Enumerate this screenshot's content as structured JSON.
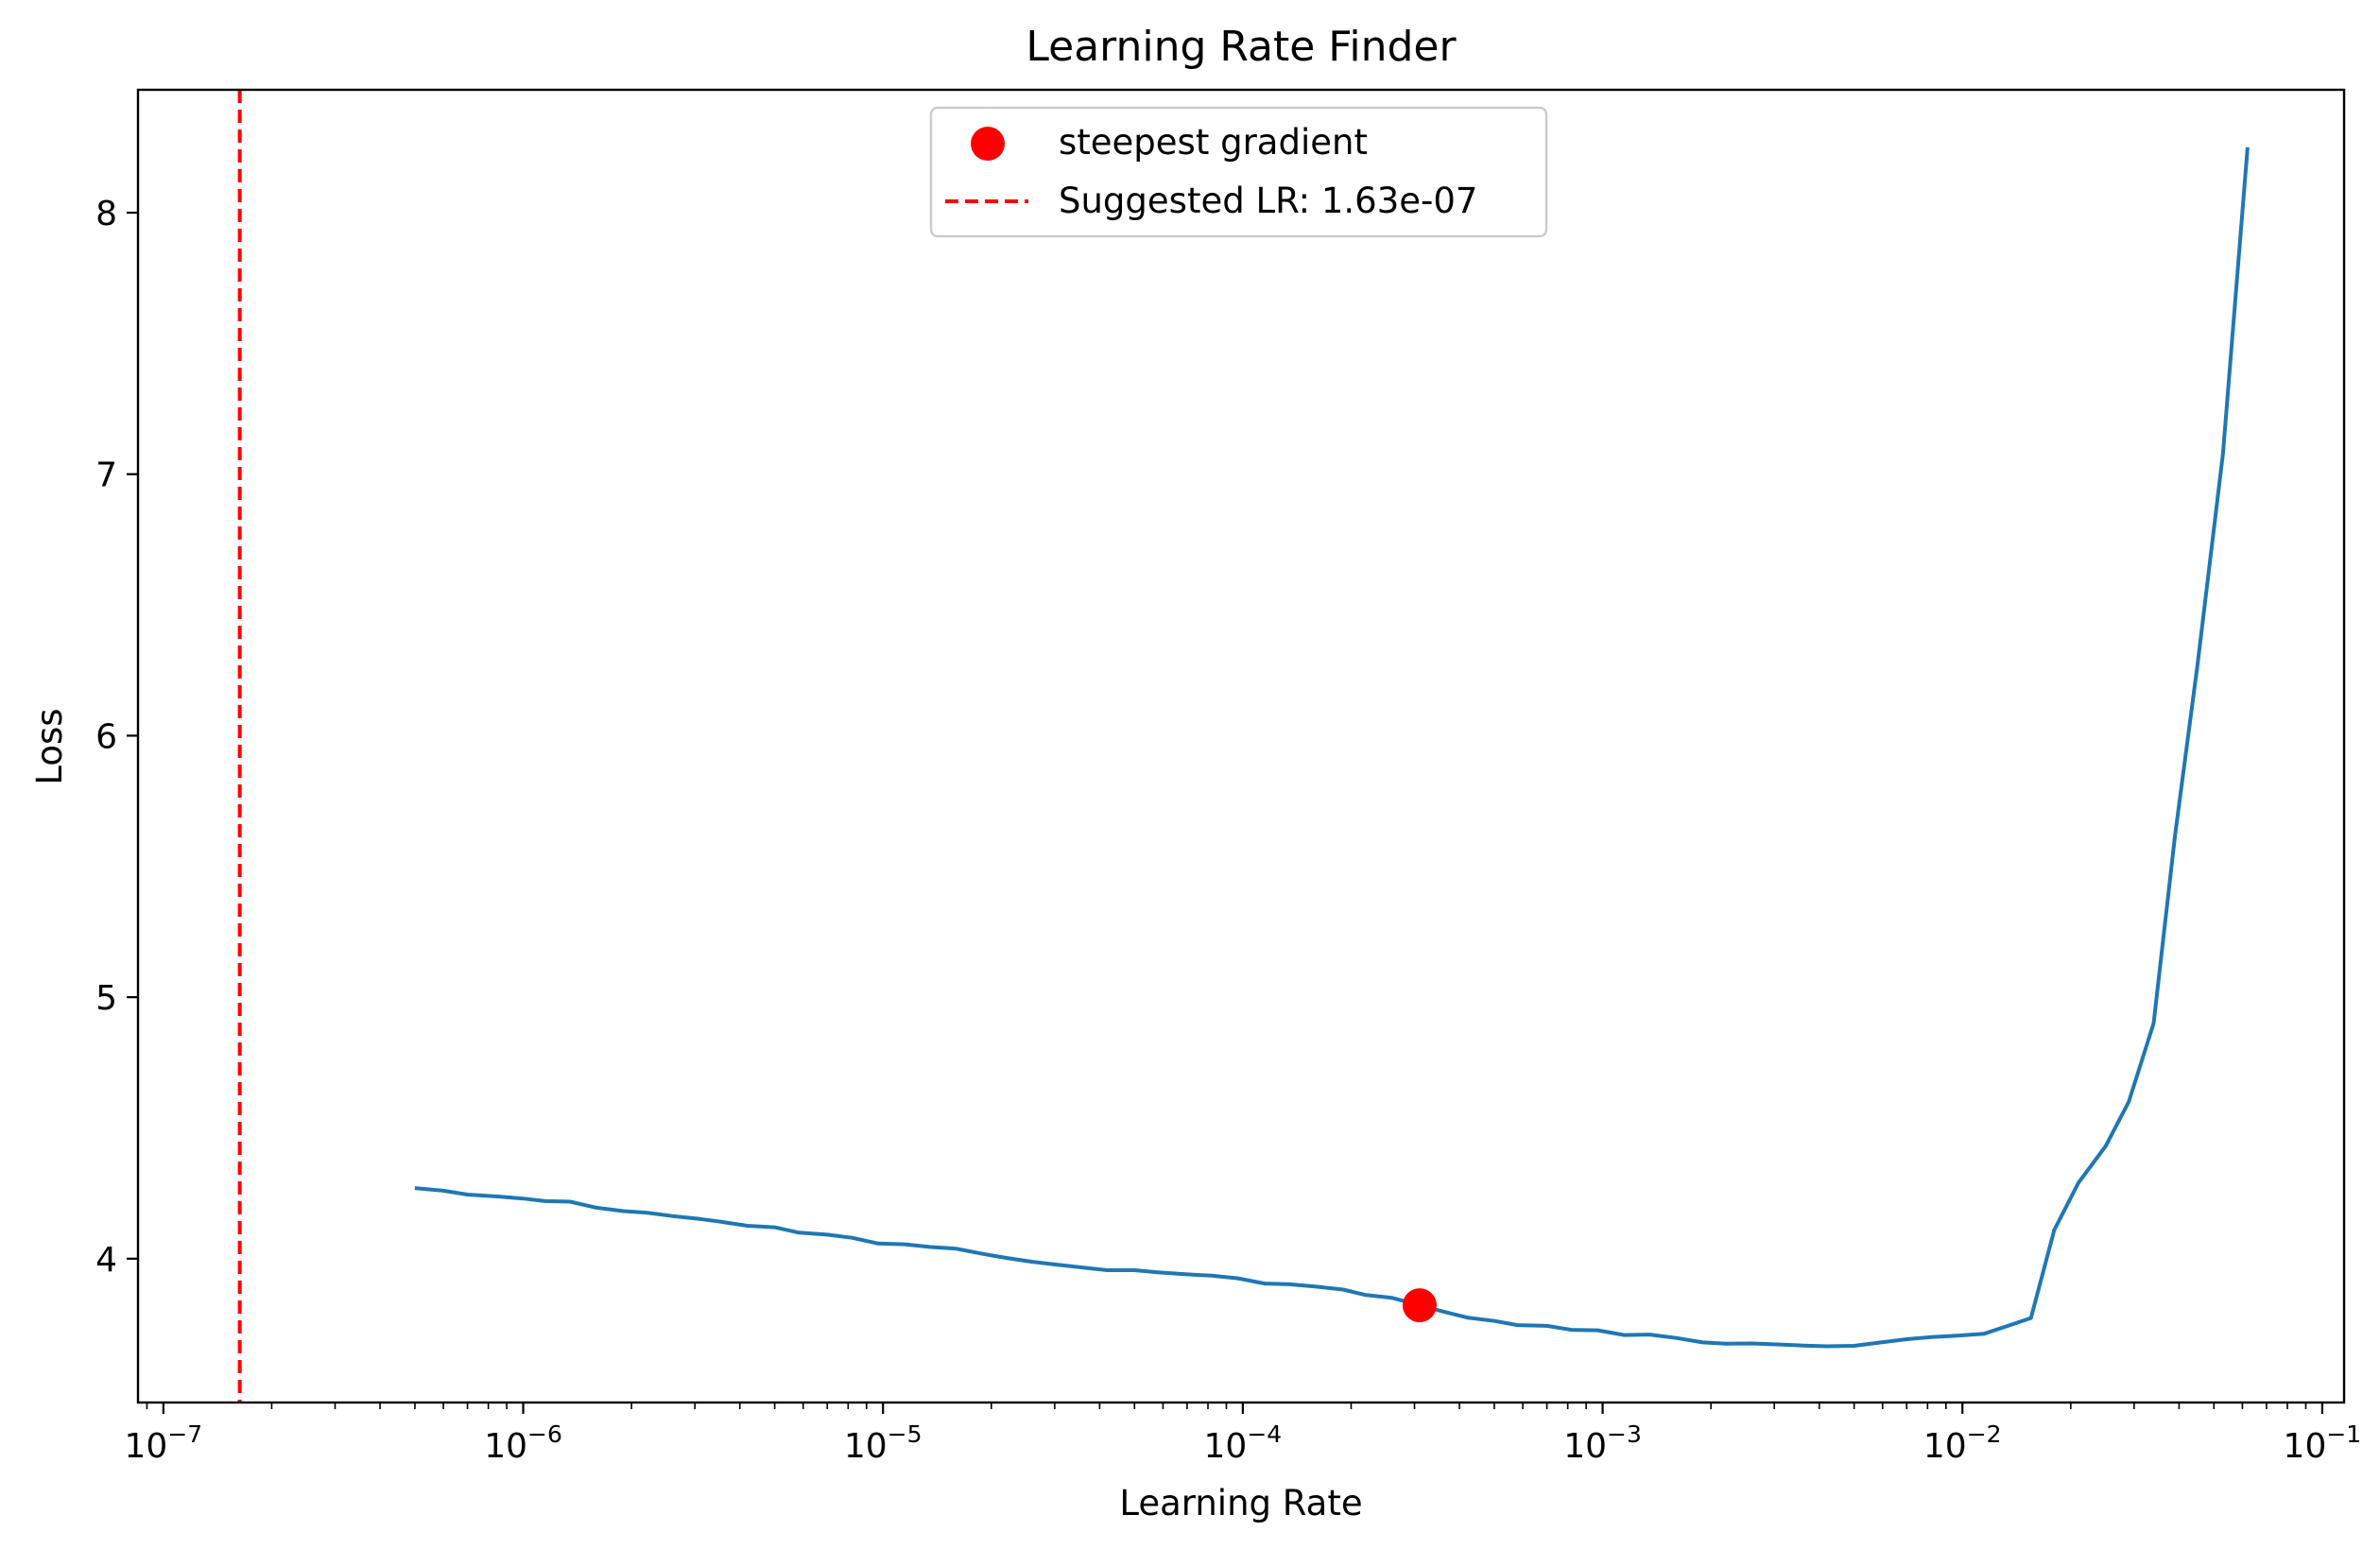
{
  "chart_data": {
    "type": "line",
    "title": "Learning Rate Finder",
    "xlabel": "Learning Rate",
    "ylabel": "Loss",
    "xscale": "log",
    "xlim": [
      8.5e-08,
      0.115
    ],
    "ylim": [
      3.45,
      8.47
    ],
    "x_ticks": [
      {
        "base": "10",
        "exp": "−7",
        "value": 1e-07
      },
      {
        "base": "10",
        "exp": "−6",
        "value": 1e-06
      },
      {
        "base": "10",
        "exp": "−5",
        "value": 1e-05
      },
      {
        "base": "10",
        "exp": "−4",
        "value": 0.0001
      },
      {
        "base": "10",
        "exp": "−3",
        "value": 0.001
      },
      {
        "base": "10",
        "exp": "−2",
        "value": 0.01
      },
      {
        "base": "10",
        "exp": "−1",
        "value": 0.1
      }
    ],
    "y_ticks": [
      {
        "label": "4",
        "value": 4
      },
      {
        "label": "5",
        "value": 5
      },
      {
        "label": "6",
        "value": 6
      },
      {
        "label": "7",
        "value": 7
      },
      {
        "label": "8",
        "value": 8
      }
    ],
    "grid": false,
    "legend_position": "top-center",
    "series": [
      {
        "color": "#1f77b4",
        "points": [
          [
            5e-07,
            4.27
          ],
          [
            6e-07,
            4.26
          ],
          [
            7e-07,
            4.245
          ],
          [
            8.5e-07,
            4.238
          ],
          [
            1e-06,
            4.23
          ],
          [
            1.15e-06,
            4.22
          ],
          [
            1.35e-06,
            4.218
          ],
          [
            1.6e-06,
            4.195
          ],
          [
            1.9e-06,
            4.182
          ],
          [
            2.2e-06,
            4.176
          ],
          [
            2.6e-06,
            4.163
          ],
          [
            3.1e-06,
            4.152
          ],
          [
            3.6e-06,
            4.14
          ],
          [
            4.2e-06,
            4.126
          ],
          [
            5e-06,
            4.12
          ],
          [
            5.8e-06,
            4.1
          ],
          [
            7e-06,
            4.092
          ],
          [
            8.2e-06,
            4.08
          ],
          [
            9.7e-06,
            4.058
          ],
          [
            1.15e-05,
            4.055
          ],
          [
            1.35e-05,
            4.045
          ],
          [
            1.6e-05,
            4.038
          ],
          [
            1.9e-05,
            4.018
          ],
          [
            2.2e-05,
            4.003
          ],
          [
            2.6e-05,
            3.988
          ],
          [
            3.1e-05,
            3.976
          ],
          [
            3.6e-05,
            3.966
          ],
          [
            4.2e-05,
            3.956
          ],
          [
            5e-05,
            3.956
          ],
          [
            5.8e-05,
            3.948
          ],
          [
            7e-05,
            3.94
          ],
          [
            8.2e-05,
            3.935
          ],
          [
            9.7e-05,
            3.925
          ],
          [
            0.000115,
            3.905
          ],
          [
            0.000135,
            3.902
          ],
          [
            0.00016,
            3.893
          ],
          [
            0.00019,
            3.882
          ],
          [
            0.00022,
            3.861
          ],
          [
            0.00026,
            3.85
          ],
          [
            0.00031,
            3.822
          ],
          [
            0.00036,
            3.798
          ],
          [
            0.00042,
            3.775
          ],
          [
            0.0005,
            3.762
          ],
          [
            0.00058,
            3.746
          ],
          [
            0.0007,
            3.743
          ],
          [
            0.00082,
            3.728
          ],
          [
            0.00097,
            3.726
          ],
          [
            0.00115,
            3.708
          ],
          [
            0.00135,
            3.71
          ],
          [
            0.0016,
            3.697
          ],
          [
            0.0019,
            3.68
          ],
          [
            0.0022,
            3.675
          ],
          [
            0.0026,
            3.676
          ],
          [
            0.0031,
            3.672
          ],
          [
            0.0036,
            3.668
          ],
          [
            0.0042,
            3.665
          ],
          [
            0.005,
            3.667
          ],
          [
            0.0058,
            3.678
          ],
          [
            0.007,
            3.692
          ],
          [
            0.0082,
            3.7
          ],
          [
            0.0097,
            3.706
          ],
          [
            0.0115,
            3.713
          ],
          [
            0.0135,
            3.745
          ],
          [
            0.0155,
            3.773
          ],
          [
            0.018,
            4.11
          ],
          [
            0.021,
            4.29
          ],
          [
            0.025,
            4.43
          ],
          [
            0.029,
            4.6
          ],
          [
            0.034,
            4.9
          ],
          [
            0.039,
            5.62
          ],
          [
            0.045,
            6.27
          ],
          [
            0.053,
            7.08
          ],
          [
            0.062,
            8.25
          ]
        ]
      }
    ],
    "marker": {
      "x": 0.00031,
      "y": 3.822,
      "color": "#ff0000"
    },
    "vline": {
      "x": 1.63e-07,
      "color": "#ff0000",
      "style": "dashed"
    },
    "legend": [
      {
        "label": "steepest gradient",
        "kind": "marker",
        "color": "#ff0000"
      },
      {
        "label": "Suggested LR: 1.63e-07",
        "kind": "dashed-line",
        "color": "#ff0000"
      }
    ]
  }
}
